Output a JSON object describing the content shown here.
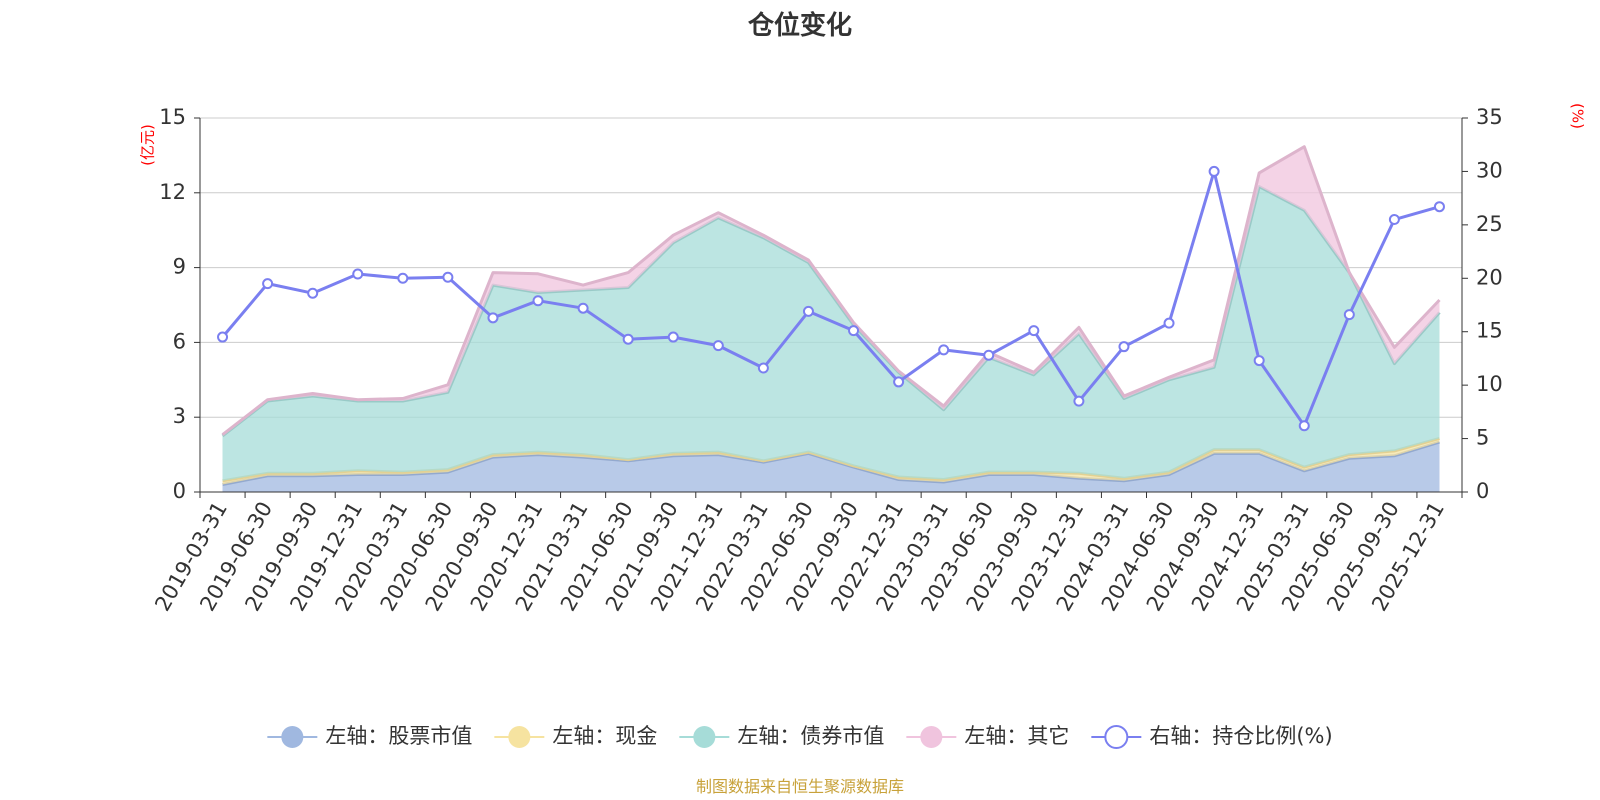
{
  "chart_data": {
    "type": "area",
    "title": "仓位变化",
    "left_axis_unit": "(亿元)",
    "right_axis_unit": "(%)",
    "left_ylim": [
      0,
      15
    ],
    "left_ticks": [
      "0",
      "3",
      "6",
      "9",
      "12",
      "15"
    ],
    "right_ylim": [
      0,
      35
    ],
    "right_ticks": [
      "0",
      "5",
      "10",
      "15",
      "20",
      "25",
      "30",
      "35"
    ],
    "grid": true,
    "stacked": true,
    "categories": [
      "2019-03-31",
      "2019-06-30",
      "2019-09-30",
      "2019-12-31",
      "2020-03-31",
      "2020-06-30",
      "2020-09-30",
      "2020-12-31",
      "2021-03-31",
      "2021-06-30",
      "2021-09-30",
      "2021-12-31",
      "2022-03-31",
      "2022-06-30",
      "2022-09-30",
      "2022-12-31",
      "2023-03-31",
      "2023-06-30",
      "2023-09-30",
      "2023-12-31",
      "2024-03-31",
      "2024-06-30",
      "2024-09-30",
      "2024-12-31",
      "2025-03-31",
      "2025-06-30",
      "2025-09-30",
      "2025-12-31"
    ],
    "series": [
      {
        "name": "左轴：股票市值",
        "axis": "left",
        "kind": "area",
        "color": "#a0b8e0",
        "values": [
          0.3,
          0.65,
          0.65,
          0.7,
          0.7,
          0.8,
          1.4,
          1.5,
          1.4,
          1.25,
          1.45,
          1.5,
          1.2,
          1.55,
          1.0,
          0.5,
          0.4,
          0.7,
          0.7,
          0.55,
          0.45,
          0.7,
          1.55,
          1.55,
          0.85,
          1.35,
          1.45,
          2.0
        ]
      },
      {
        "name": "左轴：现金",
        "axis": "left",
        "kind": "area",
        "color": "#f6e3a0",
        "values": [
          0.15,
          0.1,
          0.1,
          0.15,
          0.1,
          0.1,
          0.1,
          0.1,
          0.1,
          0.05,
          0.1,
          0.1,
          0.05,
          0.05,
          0.05,
          0.1,
          0.1,
          0.1,
          0.1,
          0.2,
          0.1,
          0.1,
          0.15,
          0.15,
          0.15,
          0.15,
          0.2,
          0.15
        ]
      },
      {
        "name": "左轴：债券市值",
        "axis": "left",
        "kind": "area",
        "color": "#a6dcd8",
        "values": [
          1.8,
          2.9,
          3.1,
          2.8,
          2.85,
          3.1,
          6.8,
          6.4,
          6.6,
          6.9,
          8.45,
          9.4,
          8.95,
          7.6,
          5.65,
          4.2,
          2.8,
          4.6,
          3.9,
          5.6,
          3.2,
          3.7,
          3.3,
          10.55,
          10.3,
          7.3,
          3.5,
          5.05
        ]
      },
      {
        "name": "左轴：其它",
        "axis": "left",
        "kind": "area",
        "color": "#f0c4de",
        "values": [
          0.05,
          0.05,
          0.1,
          0.05,
          0.1,
          0.3,
          0.5,
          0.75,
          0.2,
          0.6,
          0.3,
          0.2,
          0.1,
          0.1,
          0.1,
          0.05,
          0.15,
          0.2,
          0.1,
          0.25,
          0.1,
          0.1,
          0.3,
          0.55,
          2.55,
          0.0,
          0.65,
          0.5
        ]
      },
      {
        "name": "右轴：持仓比例(%)",
        "axis": "right",
        "kind": "line",
        "color": "#7a7ff0",
        "values": [
          14.5,
          19.5,
          18.6,
          20.4,
          20.0,
          20.1,
          16.3,
          17.9,
          17.2,
          14.3,
          14.5,
          13.7,
          11.6,
          16.9,
          15.1,
          10.3,
          13.3,
          12.8,
          15.1,
          8.5,
          13.6,
          15.8,
          30.0,
          12.3,
          6.2,
          16.6,
          25.5,
          26.7
        ]
      }
    ],
    "legend_placement": "bottom-center"
  },
  "footer": {
    "source": "制图数据来自恒生聚源数据库"
  }
}
